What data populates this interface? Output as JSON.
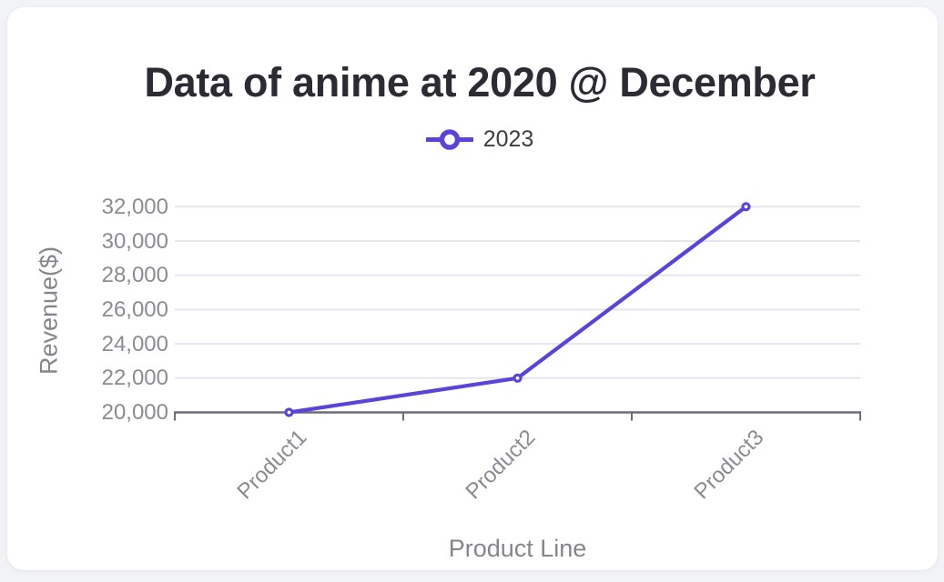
{
  "window": {
    "background": "#f2f3f6",
    "card_background": "#ffffff"
  },
  "chart_data": {
    "type": "line",
    "title": "Data of anime at 2020 @ December",
    "xlabel": "Product Line",
    "ylabel": "Revenue($)",
    "categories": [
      "Product1",
      "Product2",
      "Product3"
    ],
    "series": [
      {
        "name": "2023",
        "color": "#5a43d9",
        "marker": "open-circle",
        "values": [
          20000,
          22000,
          32000
        ]
      }
    ],
    "ylim": [
      20000,
      32000
    ],
    "y_ticks": [
      20000,
      22000,
      24000,
      26000,
      28000,
      30000,
      32000
    ],
    "y_tick_labels": [
      "20,000",
      "22,000",
      "24,000",
      "26,000",
      "28,000",
      "30,000",
      "32,000"
    ],
    "grid": true,
    "legend_position": "top-center",
    "colors": {
      "grid": "#e5e5f0",
      "axis": "#6d6d75",
      "tick_label": "#8b8b93",
      "axis_title": "#85858d",
      "title": "#2b2b33",
      "legend_text": "#3d3d44",
      "marker_fill": "#ffffff"
    }
  }
}
